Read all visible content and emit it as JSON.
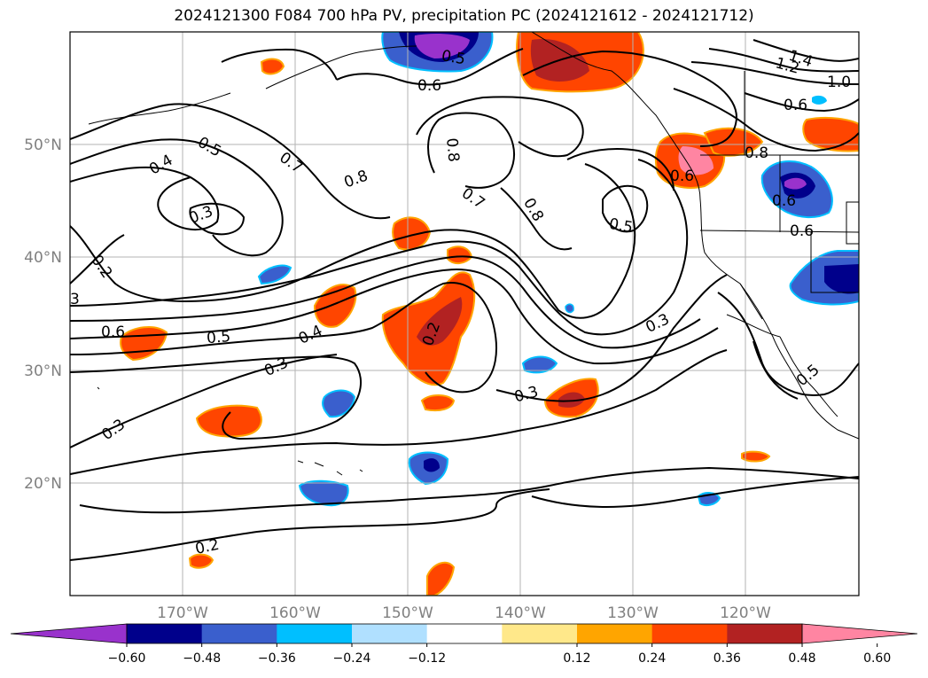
{
  "title": "2024121300 F084 700 hPa PV, precipitation PC (2024121612 - 2024121712)",
  "lat_labels": [
    "50°N",
    "40°N",
    "30°N",
    "20°N"
  ],
  "lon_labels": [
    "170°W",
    "160°W",
    "150°W",
    "140°W",
    "130°W",
    "120°W"
  ],
  "contour_labels": [
    "0.5",
    "0.6",
    "1.4",
    "1.2",
    "1.0",
    "0.6",
    "0.8",
    "0.8",
    "0.5",
    "0.7",
    "0.8",
    "0.4",
    "0.3",
    "0.7",
    "0.8",
    "0.5",
    "0.6",
    "0.6",
    "0.6",
    "0.2",
    "3",
    "0.6",
    "0.5",
    "0.4",
    "0.2",
    "0.3",
    "0.3",
    "0.3",
    "0.5",
    "0.3",
    "0.2"
  ],
  "colorbar": {
    "ticks": [
      "−0.60",
      "−0.48",
      "−0.36",
      "−0.24",
      "−0.12",
      "0.12",
      "0.24",
      "0.36",
      "0.48",
      "0.60"
    ],
    "colors": [
      "#9932cc",
      "#00008b",
      "#3a5fcd",
      "#00bfff",
      "#b0e0ff",
      "#ffffff",
      "#ffe88a",
      "#ffa500",
      "#ff4500",
      "#b22222",
      "#ff85a2"
    ]
  }
}
